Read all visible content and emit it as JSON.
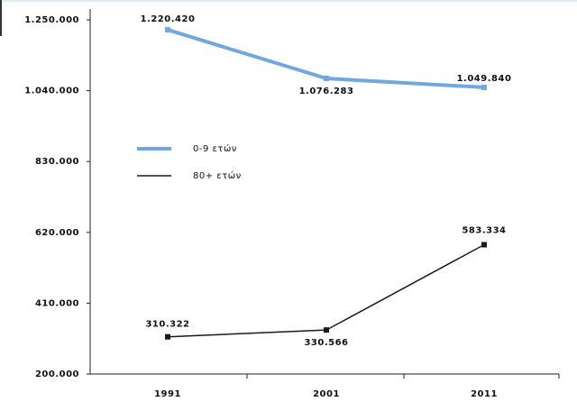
{
  "chart_data": {
    "type": "line",
    "categories": [
      "1991",
      "2001",
      "2011"
    ],
    "series": [
      {
        "name": "0-9 ετών",
        "color": "#6fa8e0",
        "values": [
          1220420,
          1076283,
          1049840
        ],
        "value_labels": [
          "1.220.420",
          "1.076.283",
          "1.049.840"
        ]
      },
      {
        "name": "80+ ετών",
        "color": "#1a1a1a",
        "values": [
          310322,
          330566,
          583334
        ],
        "value_labels": [
          "310.322",
          "330.566",
          "583.334"
        ]
      }
    ],
    "ylim": [
      200000,
      1250000
    ],
    "yticks": [
      {
        "value": 200000,
        "label": "200.000"
      },
      {
        "value": 410000,
        "label": "410.000"
      },
      {
        "value": 620000,
        "label": "620.000"
      },
      {
        "value": 830000,
        "label": "830.000"
      },
      {
        "value": 1040000,
        "label": "1.040.000"
      },
      {
        "value": 1250000,
        "label": "1.250.000"
      }
    ],
    "grid": false
  }
}
